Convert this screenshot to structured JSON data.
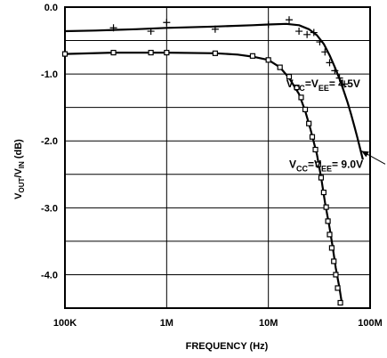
{
  "chart_data": {
    "type": "line",
    "xlabel": "FREQUENCY (Hz)",
    "ylabel": {
      "base": "V",
      "sub1": "OUT",
      "slash": "/V",
      "sub2": "IN",
      "unit": " (dB)"
    },
    "x_scale": "log",
    "xlim": [
      100000,
      100000000
    ],
    "ylim": [
      -4.5,
      0.0
    ],
    "grid": true,
    "x_ticks": [
      {
        "value": 100000,
        "label": "100K"
      },
      {
        "value": 1000000,
        "label": "1M"
      },
      {
        "value": 10000000,
        "label": "10M"
      },
      {
        "value": 100000000,
        "label": "100M"
      }
    ],
    "y_ticks": [
      {
        "value": 0.0,
        "label": "0.0"
      },
      {
        "value": -1.0,
        "label": "-1.0"
      },
      {
        "value": -2.0,
        "label": "-2.0"
      },
      {
        "value": -3.0,
        "label": "-3.0"
      },
      {
        "value": -4.0,
        "label": "-4.0"
      }
    ],
    "annotations": [
      {
        "parts": [
          {
            "t": "V"
          },
          {
            "t": "CC",
            "sub": true
          },
          {
            "t": "=V"
          },
          {
            "t": "EE",
            "sub": true
          },
          {
            "t": "= 4.5V"
          }
        ],
        "x": 15000000.0,
        "y": -1.2
      },
      {
        "parts": [
          {
            "t": "V"
          },
          {
            "t": "CC",
            "sub": true
          },
          {
            "t": "=V"
          },
          {
            "t": "EE",
            "sub": true
          },
          {
            "t": "= 9.0V"
          }
        ],
        "x": 16000000.0,
        "y": -2.4,
        "arrow_to": [
          82000000.0,
          -2.15
        ]
      }
    ],
    "series": [
      {
        "marker": "plus",
        "values": [
          {
            "x": 100000,
            "y": -0.36
          },
          {
            "x": 200000,
            "y": -0.35
          },
          {
            "x": 500000,
            "y": -0.33
          },
          {
            "x": 1000000,
            "y": -0.31
          },
          {
            "x": 3000000,
            "y": -0.29
          },
          {
            "x": 7000000,
            "y": -0.27
          },
          {
            "x": 10000000,
            "y": -0.26
          },
          {
            "x": 15000000,
            "y": -0.25
          },
          {
            "x": 20000000,
            "y": -0.27
          },
          {
            "x": 25000000,
            "y": -0.33
          },
          {
            "x": 30000000,
            "y": -0.42
          },
          {
            "x": 35000000,
            "y": -0.55
          },
          {
            "x": 40000000,
            "y": -0.72
          },
          {
            "x": 45000000,
            "y": -0.9
          },
          {
            "x": 50000000,
            "y": -1.07
          },
          {
            "x": 55000000,
            "y": -1.25
          },
          {
            "x": 60000000,
            "y": -1.42
          },
          {
            "x": 65000000,
            "y": -1.6
          },
          {
            "x": 70000000,
            "y": -1.78
          },
          {
            "x": 75000000,
            "y": -1.95
          },
          {
            "x": 85000000,
            "y": -2.28
          }
        ],
        "markers": [
          {
            "x": 300000,
            "y": -0.31
          },
          {
            "x": 700000,
            "y": -0.36
          },
          {
            "x": 1000000,
            "y": -0.23
          },
          {
            "x": 3000000,
            "y": -0.33
          },
          {
            "x": 10000000,
            "y": -0.26
          },
          {
            "x": 16000000,
            "y": -0.19
          },
          {
            "x": 20000000,
            "y": -0.36
          },
          {
            "x": 24000000,
            "y": -0.41
          },
          {
            "x": 28000000,
            "y": -0.38
          },
          {
            "x": 32000000,
            "y": -0.52
          },
          {
            "x": 36000000,
            "y": -0.67
          },
          {
            "x": 40000000,
            "y": -0.83
          },
          {
            "x": 45000000,
            "y": -0.95
          },
          {
            "x": 50000000,
            "y": -1.06
          },
          {
            "x": 56000000,
            "y": -1.15
          }
        ]
      },
      {
        "marker": "square",
        "values": [
          {
            "x": 100000,
            "y": -0.7
          },
          {
            "x": 300000,
            "y": -0.68
          },
          {
            "x": 1000000,
            "y": -0.68
          },
          {
            "x": 3000000,
            "y": -0.69
          },
          {
            "x": 5000000,
            "y": -0.71
          },
          {
            "x": 7000000,
            "y": -0.74
          },
          {
            "x": 10000000,
            "y": -0.79
          },
          {
            "x": 13000000,
            "y": -0.9
          },
          {
            "x": 16000000,
            "y": -1.06
          },
          {
            "x": 20000000,
            "y": -1.3
          },
          {
            "x": 23000000,
            "y": -1.55
          },
          {
            "x": 26000000,
            "y": -1.83
          },
          {
            "x": 30000000,
            "y": -2.2
          },
          {
            "x": 33000000,
            "y": -2.55
          },
          {
            "x": 36000000,
            "y": -2.92
          },
          {
            "x": 40000000,
            "y": -3.3
          },
          {
            "x": 43000000,
            "y": -3.6
          },
          {
            "x": 46000000,
            "y": -3.9
          },
          {
            "x": 50000000,
            "y": -4.2
          },
          {
            "x": 53000000,
            "y": -4.45
          }
        ],
        "markers": [
          {
            "x": 100000,
            "y": -0.7
          },
          {
            "x": 300000,
            "y": -0.68
          },
          {
            "x": 700000,
            "y": -0.68
          },
          {
            "x": 1000000,
            "y": -0.68
          },
          {
            "x": 3000000,
            "y": -0.69
          },
          {
            "x": 7000000,
            "y": -0.73
          },
          {
            "x": 10000000,
            "y": -0.79
          },
          {
            "x": 13000000,
            "y": -0.9
          },
          {
            "x": 16000000,
            "y": -1.04
          },
          {
            "x": 19000000,
            "y": -1.2
          },
          {
            "x": 21000000,
            "y": -1.35
          },
          {
            "x": 23000000,
            "y": -1.53
          },
          {
            "x": 25000000,
            "y": -1.74
          },
          {
            "x": 27000000,
            "y": -1.94
          },
          {
            "x": 29000000,
            "y": -2.13
          },
          {
            "x": 31000000,
            "y": -2.35
          },
          {
            "x": 33000000,
            "y": -2.55
          },
          {
            "x": 35000000,
            "y": -2.77
          },
          {
            "x": 37000000,
            "y": -2.99
          },
          {
            "x": 38500000,
            "y": -3.2
          },
          {
            "x": 40000000,
            "y": -3.4
          },
          {
            "x": 42000000,
            "y": -3.6
          },
          {
            "x": 44000000,
            "y": -3.8
          },
          {
            "x": 46000000,
            "y": -4.0
          },
          {
            "x": 48000000,
            "y": -4.2
          },
          {
            "x": 51000000,
            "y": -4.42
          }
        ]
      }
    ]
  }
}
